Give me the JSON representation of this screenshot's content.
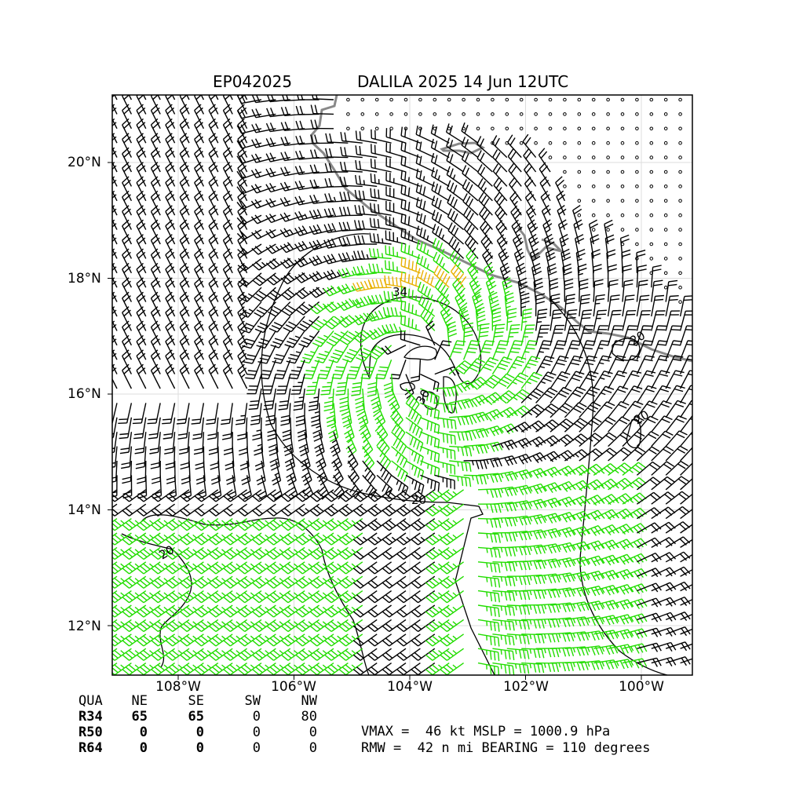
{
  "title": {
    "storm_id": "EP042025",
    "storm_name_time": "DALILA 2025 14 Jun 12UTC"
  },
  "map": {
    "lat_labels": [
      "20°N",
      "18°N",
      "16°N",
      "14°N",
      "12°N"
    ],
    "lon_labels": [
      "108°W",
      "106°W",
      "104°W",
      "102°W",
      "100°W"
    ],
    "contour_labels": [
      "34",
      "20",
      "20",
      "30",
      "20",
      "20",
      "30"
    ],
    "colors": {
      "barb_default": "#000000",
      "barb_ts": "#22dd00",
      "barb_50": "#e8b000",
      "coastline": "#888888",
      "gridline": "#dddddd"
    },
    "wind_center": {
      "lat": 16.6,
      "lon": -103.8
    },
    "land_marker": "station-circle"
  },
  "quadrants": {
    "header": [
      "QUA",
      "NE",
      "SE",
      "SW",
      "NW"
    ],
    "rows": [
      [
        "R34",
        "65",
        "65",
        "0",
        "80"
      ],
      [
        "R50",
        "0",
        "0",
        "0",
        "0"
      ],
      [
        "R64",
        "0",
        "0",
        "0",
        "0"
      ]
    ]
  },
  "stats": {
    "line1": "VMAX =  46 kt MSLP = 1000.9 hPa",
    "line2": "RMW =  42 n mi BEARING = 110 degrees"
  }
}
